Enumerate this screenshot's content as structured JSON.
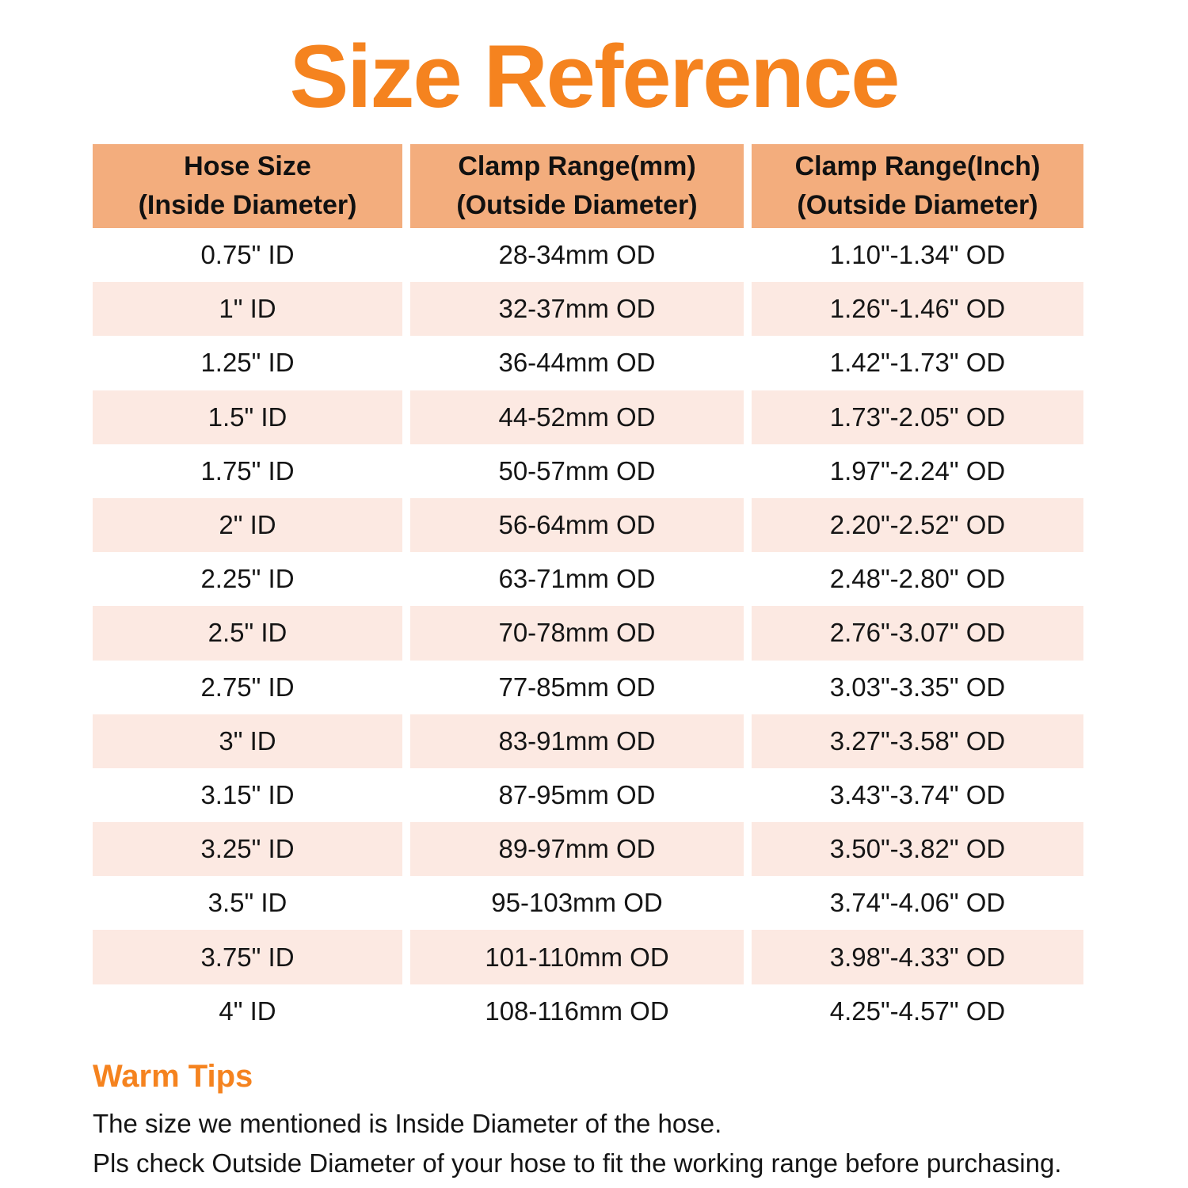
{
  "page": {
    "title": "Size Reference"
  },
  "colors": {
    "title_orange": "#F5831F",
    "header_bg": "#F3AD7D",
    "row_alt_bg": "#FCE9E2",
    "text_dark": "#151515",
    "page_bg": "#FFFFFF"
  },
  "table": {
    "headers": [
      {
        "label": "Hose Size\n(Inside Diameter)"
      },
      {
        "label": "Clamp Range(mm)\n(Outside Diameter)"
      },
      {
        "label": "Clamp Range(Inch)\n(Outside Diameter)"
      }
    ]
  },
  "chart_data": {
    "type": "table",
    "title": "Size Reference",
    "columns": [
      "Hose Size (Inside Diameter)",
      "Clamp Range(mm) (Outside Diameter)",
      "Clamp Range(Inch) (Outside Diameter)"
    ],
    "rows": [
      [
        "0.75\" ID",
        "28-34mm OD",
        "1.10\"-1.34\" OD"
      ],
      [
        "1\" ID",
        "32-37mm OD",
        "1.26\"-1.46\" OD"
      ],
      [
        "1.25\" ID",
        "36-44mm OD",
        "1.42\"-1.73\" OD"
      ],
      [
        "1.5\" ID",
        "44-52mm OD",
        "1.73\"-2.05\" OD"
      ],
      [
        "1.75\" ID",
        "50-57mm OD",
        "1.97\"-2.24\" OD"
      ],
      [
        "2\" ID",
        "56-64mm OD",
        "2.20\"-2.52\" OD"
      ],
      [
        "2.25\" ID",
        "63-71mm OD",
        "2.48\"-2.80\" OD"
      ],
      [
        "2.5\" ID",
        "70-78mm OD",
        "2.76\"-3.07\" OD"
      ],
      [
        "2.75\" ID",
        "77-85mm OD",
        "3.03\"-3.35\" OD"
      ],
      [
        "3\" ID",
        "83-91mm OD",
        "3.27\"-3.58\" OD"
      ],
      [
        "3.15\" ID",
        "87-95mm OD",
        "3.43\"-3.74\" OD"
      ],
      [
        "3.25\" ID",
        "89-97mm OD",
        "3.50\"-3.82\" OD"
      ],
      [
        "3.5\" ID",
        "95-103mm OD",
        "3.74\"-4.06\" OD"
      ],
      [
        "3.75\" ID",
        "101-110mm OD",
        "3.98\"-4.33\" OD"
      ],
      [
        "4\" ID",
        "108-116mm OD",
        "4.25\"-4.57\" OD"
      ]
    ],
    "layout": {
      "header_fill": "#F3AD7D",
      "alternating_row_fill": "#FCE9E2",
      "alternating_pattern": "even rows (2nd, 4th, ...) tinted",
      "grid": "off",
      "column_gaps": "white vertical gutters between columns"
    }
  },
  "warm_tips": {
    "heading": "Warm Tips",
    "lines": [
      "The size we mentioned is Inside Diameter of the hose.",
      "Pls check Outside Diameter of your hose to fit the working range before purchasing."
    ]
  }
}
